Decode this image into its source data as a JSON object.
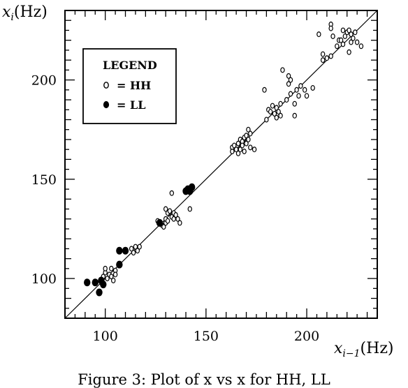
{
  "chart_data": {
    "type": "scatter",
    "title": "",
    "xlabel_base": "x",
    "xlabel_sub": "i−1",
    "xlabel_unit": "(Hz)",
    "ylabel_base": "x",
    "ylabel_sub": "i",
    "ylabel_unit": "(Hz)",
    "xlim": [
      80,
      235
    ],
    "ylim": [
      80,
      235
    ],
    "xticks": [
      100,
      150,
      200
    ],
    "yticks": [
      100,
      150,
      200
    ],
    "tick_labels_x": [
      "100",
      "150",
      "200"
    ],
    "tick_labels_y": [
      "100",
      "150",
      "200"
    ],
    "reference_line": "y = x",
    "legend": {
      "title": "LEGEND",
      "entries": [
        {
          "marker": "open",
          "label": "= HH"
        },
        {
          "marker": "filled",
          "label": "= LL"
        }
      ]
    },
    "series": [
      {
        "name": "HH",
        "marker": "open",
        "points": [
          [
            98,
            98
          ],
          [
            99,
            101
          ],
          [
            100,
            103
          ],
          [
            100,
            105
          ],
          [
            101,
            100
          ],
          [
            102,
            102
          ],
          [
            103,
            105
          ],
          [
            103,
            101
          ],
          [
            104,
            99
          ],
          [
            105,
            104
          ],
          [
            105,
            102
          ],
          [
            113,
            115
          ],
          [
            114,
            113
          ],
          [
            115,
            116
          ],
          [
            116,
            114
          ],
          [
            117,
            116
          ],
          [
            126,
            129
          ],
          [
            128,
            127
          ],
          [
            129,
            126
          ],
          [
            130,
            128
          ],
          [
            130,
            130
          ],
          [
            131,
            129
          ],
          [
            131,
            133
          ],
          [
            130,
            135
          ],
          [
            132,
            134
          ],
          [
            133,
            131
          ],
          [
            133,
            143
          ],
          [
            134,
            133
          ],
          [
            134,
            130
          ],
          [
            135,
            132
          ],
          [
            136,
            130
          ],
          [
            137,
            128
          ],
          [
            142,
            135
          ],
          [
            163,
            166
          ],
          [
            163,
            164
          ],
          [
            164,
            167
          ],
          [
            165,
            165
          ],
          [
            166,
            168
          ],
          [
            166,
            163
          ],
          [
            167,
            170
          ],
          [
            167,
            165
          ],
          [
            168,
            169
          ],
          [
            168,
            167
          ],
          [
            169,
            164
          ],
          [
            169,
            171
          ],
          [
            170,
            168
          ],
          [
            170,
            172
          ],
          [
            171,
            170
          ],
          [
            172,
            166
          ],
          [
            172,
            173
          ],
          [
            171,
            175
          ],
          [
            174,
            165
          ],
          [
            179,
            195
          ],
          [
            180,
            180
          ],
          [
            181,
            185
          ],
          [
            182,
            184
          ],
          [
            183,
            187
          ],
          [
            184,
            183
          ],
          [
            185,
            181
          ],
          [
            185,
            186
          ],
          [
            186,
            184
          ],
          [
            187,
            182
          ],
          [
            187,
            188
          ],
          [
            188,
            205
          ],
          [
            190,
            190
          ],
          [
            191,
            198
          ],
          [
            191,
            202
          ],
          [
            192,
            200
          ],
          [
            192,
            193
          ],
          [
            194,
            188
          ],
          [
            194,
            182
          ],
          [
            195,
            195
          ],
          [
            196,
            192
          ],
          [
            197,
            197
          ],
          [
            199,
            195
          ],
          [
            200,
            192
          ],
          [
            203,
            196
          ],
          [
            206,
            223
          ],
          [
            208,
            210
          ],
          [
            208,
            213
          ],
          [
            210,
            211
          ],
          [
            212,
            212
          ],
          [
            212,
            228
          ],
          [
            212,
            226
          ],
          [
            213,
            222
          ],
          [
            215,
            217
          ],
          [
            216,
            220
          ],
          [
            217,
            220
          ],
          [
            218,
            218
          ],
          [
            218,
            225
          ],
          [
            219,
            222
          ],
          [
            220,
            224
          ],
          [
            221,
            225
          ],
          [
            221,
            214
          ],
          [
            222,
            219
          ],
          [
            222,
            223
          ],
          [
            223,
            221
          ],
          [
            224,
            224
          ],
          [
            225,
            219
          ],
          [
            227,
            217
          ]
        ]
      },
      {
        "name": "LL",
        "marker": "filled",
        "points": [
          [
            91,
            98
          ],
          [
            95,
            98
          ],
          [
            97,
            93
          ],
          [
            98,
            99
          ],
          [
            99,
            97
          ],
          [
            107,
            107
          ],
          [
            107,
            114
          ],
          [
            110,
            114
          ],
          [
            127,
            128
          ],
          [
            140,
            144
          ],
          [
            141,
            145
          ],
          [
            142,
            144
          ],
          [
            143,
            146
          ]
        ]
      }
    ]
  },
  "caption": "Figure 3: Plot of x   vs x  for HH, LL"
}
